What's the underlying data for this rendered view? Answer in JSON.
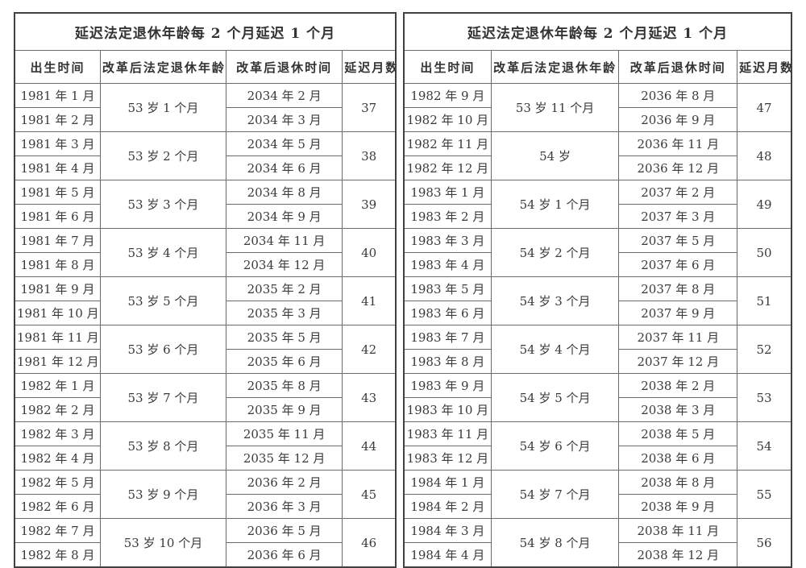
{
  "colors": {
    "background": "#ffffff",
    "text": "#3a3a3a",
    "inner_border": "#6b6b6b",
    "outer_border": "#404040"
  },
  "columns": [
    "出生时间",
    "改革后法定退休年龄",
    "改革后退休时间",
    "延迟月数"
  ],
  "tables": [
    {
      "title": "延迟法定退休年龄每 2 个月延迟 1 个月",
      "groups": [
        {
          "births": [
            "1981 年 1 月",
            "1981 年 2 月"
          ],
          "age": "53 岁 1 个月",
          "retire": [
            "2034 年 2 月",
            "2034 年 3 月"
          ],
          "delay": "37"
        },
        {
          "births": [
            "1981 年 3 月",
            "1981 年 4 月"
          ],
          "age": "53 岁 2 个月",
          "retire": [
            "2034 年 5 月",
            "2034 年 6 月"
          ],
          "delay": "38"
        },
        {
          "births": [
            "1981 年 5 月",
            "1981 年 6 月"
          ],
          "age": "53 岁 3 个月",
          "retire": [
            "2034 年 8 月",
            "2034 年 9 月"
          ],
          "delay": "39"
        },
        {
          "births": [
            "1981 年 7 月",
            "1981 年 8 月"
          ],
          "age": "53 岁 4 个月",
          "retire": [
            "2034 年 11 月",
            "2034 年 12 月"
          ],
          "delay": "40"
        },
        {
          "births": [
            "1981 年 9 月",
            "1981 年 10 月"
          ],
          "age": "53 岁 5 个月",
          "retire": [
            "2035 年 2 月",
            "2035 年 3 月"
          ],
          "delay": "41"
        },
        {
          "births": [
            "1981 年 11 月",
            "1981 年 12 月"
          ],
          "age": "53 岁 6 个月",
          "retire": [
            "2035 年 5 月",
            "2035 年 6 月"
          ],
          "delay": "42"
        },
        {
          "births": [
            "1982 年 1 月",
            "1982 年 2 月"
          ],
          "age": "53 岁 7 个月",
          "retire": [
            "2035 年 8 月",
            "2035 年 9 月"
          ],
          "delay": "43"
        },
        {
          "births": [
            "1982 年 3 月",
            "1982 年 4 月"
          ],
          "age": "53 岁 8 个月",
          "retire": [
            "2035 年 11 月",
            "2035 年 12 月"
          ],
          "delay": "44"
        },
        {
          "births": [
            "1982 年 5 月",
            "1982 年 6 月"
          ],
          "age": "53 岁 9 个月",
          "retire": [
            "2036 年 2 月",
            "2036 年 3 月"
          ],
          "delay": "45"
        },
        {
          "births": [
            "1982 年 7 月",
            "1982 年 8 月"
          ],
          "age": "53 岁 10 个月",
          "retire": [
            "2036 年 5 月",
            "2036 年 6 月"
          ],
          "delay": "46"
        }
      ]
    },
    {
      "title": "延迟法定退休年龄每 2 个月延迟 1 个月",
      "groups": [
        {
          "births": [
            "1982 年 9 月",
            "1982 年 10 月"
          ],
          "age": "53 岁 11 个月",
          "retire": [
            "2036 年 8 月",
            "2036 年 9 月"
          ],
          "delay": "47"
        },
        {
          "births": [
            "1982 年 11 月",
            "1982 年 12 月"
          ],
          "age": "54 岁",
          "retire": [
            "2036 年 11 月",
            "2036 年 12 月"
          ],
          "delay": "48"
        },
        {
          "births": [
            "1983 年 1 月",
            "1983 年 2 月"
          ],
          "age": "54 岁 1 个月",
          "retire": [
            "2037 年 2 月",
            "2037 年 3 月"
          ],
          "delay": "49"
        },
        {
          "births": [
            "1983 年 3 月",
            "1983 年 4 月"
          ],
          "age": "54 岁 2 个月",
          "retire": [
            "2037 年 5 月",
            "2037 年 6 月"
          ],
          "delay": "50"
        },
        {
          "births": [
            "1983 年 5 月",
            "1983 年 6 月"
          ],
          "age": "54 岁 3 个月",
          "retire": [
            "2037 年 8 月",
            "2037 年 9 月"
          ],
          "delay": "51"
        },
        {
          "births": [
            "1983 年 7 月",
            "1983 年 8 月"
          ],
          "age": "54 岁 4 个月",
          "retire": [
            "2037 年 11 月",
            "2037 年 12 月"
          ],
          "delay": "52"
        },
        {
          "births": [
            "1983 年 9 月",
            "1983 年 10 月"
          ],
          "age": "54 岁 5 个月",
          "retire": [
            "2038 年 2 月",
            "2038 年 3 月"
          ],
          "delay": "53"
        },
        {
          "births": [
            "1983 年 11 月",
            "1983 年 12 月"
          ],
          "age": "54 岁 6 个月",
          "retire": [
            "2038 年 5 月",
            "2038 年 6 月"
          ],
          "delay": "54"
        },
        {
          "births": [
            "1984 年 1 月",
            "1984 年 2 月"
          ],
          "age": "54 岁 7 个月",
          "retire": [
            "2038 年 8 月",
            "2038 年 9 月"
          ],
          "delay": "55"
        },
        {
          "births": [
            "1984 年 3 月",
            "1984 年 4 月"
          ],
          "age": "54 岁 8 个月",
          "retire": [
            "2038 年 11 月",
            "2038 年 12 月"
          ],
          "delay": "56"
        }
      ]
    }
  ]
}
